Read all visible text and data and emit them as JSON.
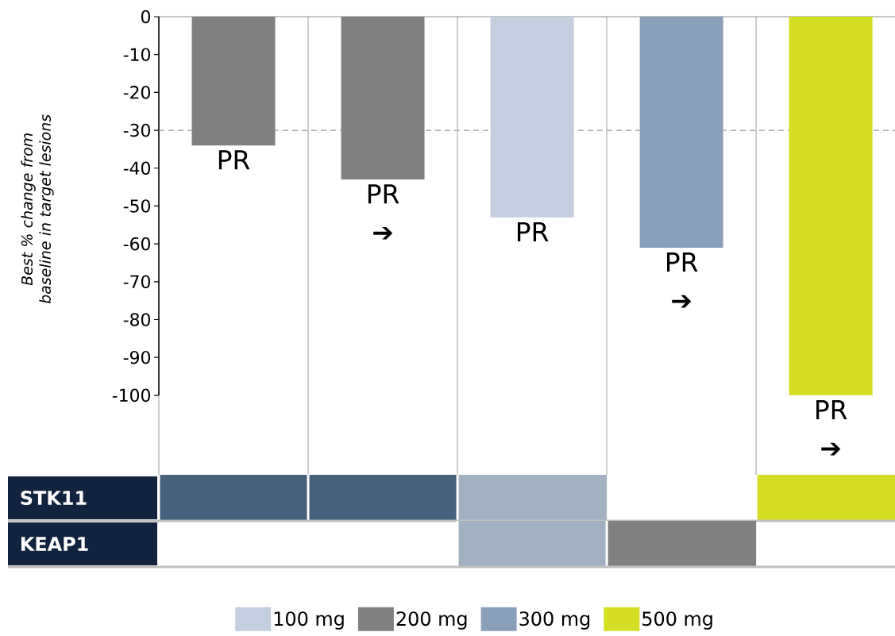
{
  "chart_data": [
    {
      "type": "bar",
      "ylabel": "Best % change from baseline in target lesions",
      "categories": [
        null,
        null,
        null,
        null,
        null
      ],
      "series": [
        {
          "name": "100 mg",
          "color": "#c3cedf",
          "values": [
            null,
            null,
            -53,
            null,
            null
          ],
          "value_labels": [
            null,
            null,
            "PR",
            null,
            null
          ]
        },
        {
          "name": "200 mg",
          "color": "#808080",
          "values": [
            -34,
            -43,
            null,
            null,
            null
          ],
          "value_labels": [
            "PR",
            "PR ➔",
            null,
            null,
            null
          ]
        },
        {
          "name": "300 mg",
          "color": "#8a9fba",
          "values": [
            null,
            null,
            null,
            -61,
            null
          ],
          "value_labels": [
            null,
            null,
            null,
            "PR ➔",
            null
          ]
        },
        {
          "name": "500 mg",
          "color": "#d4de25",
          "values": [
            null,
            null,
            null,
            null,
            -100
          ],
          "value_labels": [
            null,
            null,
            null,
            null,
            "PR ➔"
          ]
        }
      ],
      "ylim": [
        -121,
        0
      ],
      "yticks": [
        0,
        -10,
        -20,
        -30,
        -40,
        -50,
        -60,
        -70,
        -80,
        -90,
        -100
      ],
      "grid": "x",
      "legend": "bottom",
      "ref_lines": [
        {
          "axis": "y",
          "value": -30,
          "color": "#a0a0a0",
          "line_style": "dashed"
        }
      ]
    },
    {
      "type": "heatmap",
      "categories": [
        null,
        null,
        null,
        null,
        null
      ],
      "y_categories": [
        "STK11",
        "KEAP1"
      ],
      "cells": [
        [
          true,
          true,
          true,
          null,
          true
        ],
        [
          null,
          null,
          true,
          true,
          null
        ]
      ],
      "colors": [
        [
          "#47607c",
          "#47607c",
          "#a1b1c1",
          null,
          "#d4de25"
        ],
        [
          null,
          null,
          "#a1b1c1",
          "#808080",
          null
        ]
      ]
    }
  ]
}
